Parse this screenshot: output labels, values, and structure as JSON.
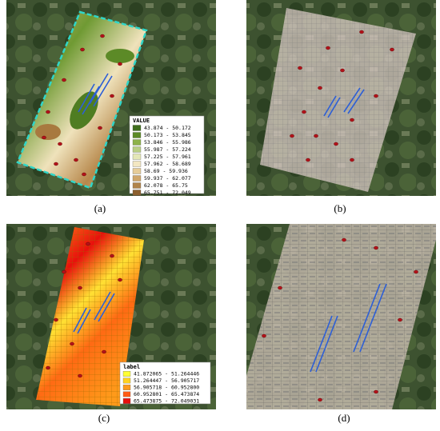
{
  "panels": [
    {
      "label": "(a)",
      "legend": {
        "title": "VALUE",
        "items": [
          {
            "text": "43.874 - 50.172",
            "color": "#3f6e1c"
          },
          {
            "text": "50.173 - 53.845",
            "color": "#5c8a27"
          },
          {
            "text": "53.846 - 55.986",
            "color": "#8db24a"
          },
          {
            "text": "55.987 - 57.224",
            "color": "#b9cf84"
          },
          {
            "text": "57.225 - 57.961",
            "color": "#e4e7b6"
          },
          {
            "text": "57.962 - 58.689",
            "color": "#f3e7c2"
          },
          {
            "text": "58.69 - 59.936",
            "color": "#e6cc98"
          },
          {
            "text": "59.937 - 62.077",
            "color": "#cfa66a"
          },
          {
            "text": "62.078 - 65.75",
            "color": "#b0834a"
          },
          {
            "text": "65.751 - 72.049",
            "color": "#8c5f2e"
          }
        ]
      }
    },
    {
      "label": "(b)"
    },
    {
      "label": "(c)",
      "legend": {
        "title": "label",
        "items": [
          {
            "text": "41.872065 - 51.264446",
            "color": "#ffff33"
          },
          {
            "text": "51.264447 - 56.905717",
            "color": "#ffd21f"
          },
          {
            "text": "56.905718 - 60.952800",
            "color": "#ff9a1a"
          },
          {
            "text": "60.952801 - 65.473874",
            "color": "#ff5a14"
          },
          {
            "text": "65.473875 - 72.049031",
            "color": "#e8100c"
          }
        ]
      }
    },
    {
      "label": "(d)"
    }
  ]
}
